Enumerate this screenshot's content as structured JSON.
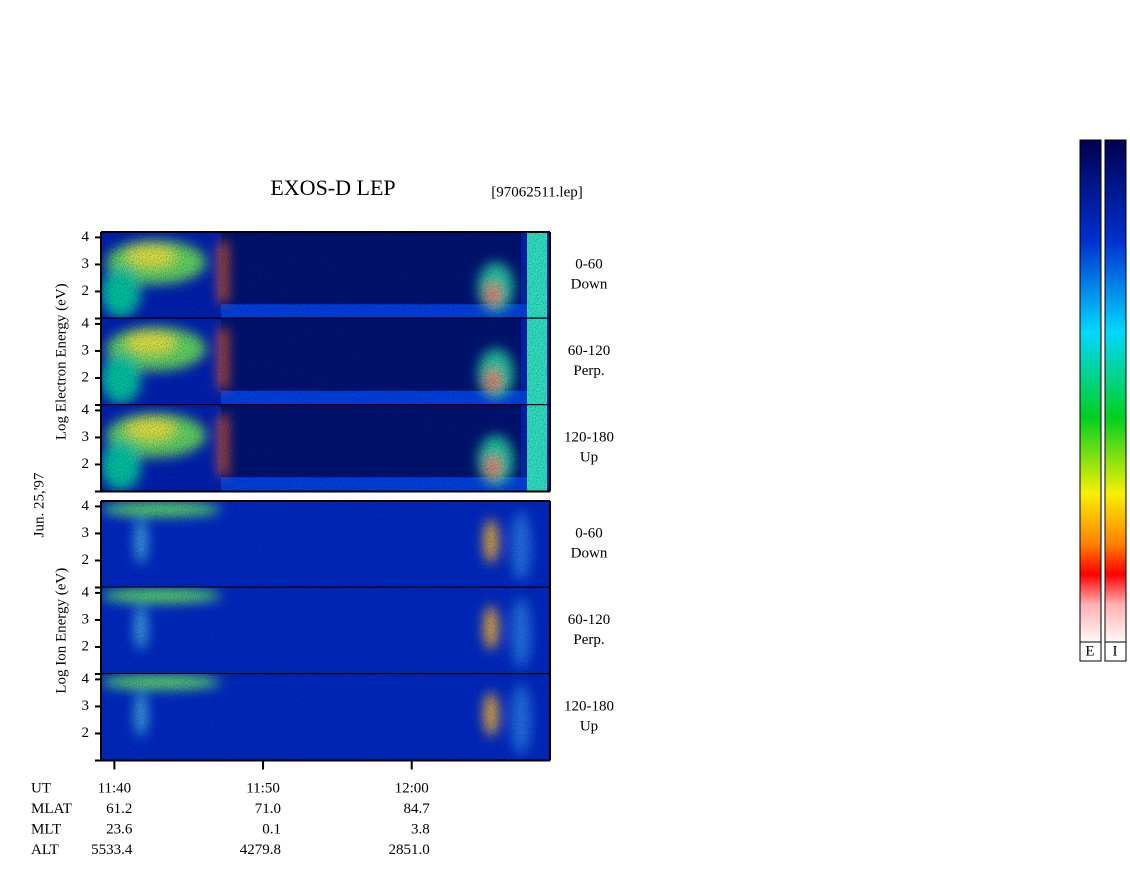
{
  "chart_data": {
    "type": "spectrogram",
    "title": "EXOS-D LEP",
    "file": "[97062511.lep]",
    "date": "Jun. 25,'97",
    "groups": [
      {
        "label": "Log Electron Energy (eV)",
        "kind": "electron",
        "panels": [
          {
            "range": "0-60",
            "direction": "Down"
          },
          {
            "range": "60-120",
            "direction": "Perp."
          },
          {
            "range": "120-180",
            "direction": "Up"
          }
        ]
      },
      {
        "label": "Log Ion Energy (eV)",
        "kind": "ion",
        "panels": [
          {
            "range": "0-60",
            "direction": "Down"
          },
          {
            "range": "60-120",
            "direction": "Perp."
          },
          {
            "range": "120-180",
            "direction": "Up"
          }
        ]
      }
    ],
    "ylim": [
      1,
      4.2
    ],
    "yticks": [
      2,
      3,
      4
    ],
    "xlim": [
      699.1,
      729.3
    ],
    "xticks": [
      {
        "value": 700,
        "label": "11:40"
      },
      {
        "value": 710,
        "label": "11:50"
      },
      {
        "value": 720,
        "label": "12:00"
      }
    ],
    "ephemeris": {
      "labels": [
        "UT",
        "MLAT",
        "MLT",
        "ALT"
      ],
      "rows": [
        [
          "61.2",
          "71.0",
          "84.7"
        ],
        [
          "23.6",
          "0.1",
          "3.8"
        ],
        [
          "5533.4",
          "4279.8",
          "2851.0"
        ]
      ]
    },
    "colorbar_labels": [
      "E",
      "I"
    ]
  }
}
